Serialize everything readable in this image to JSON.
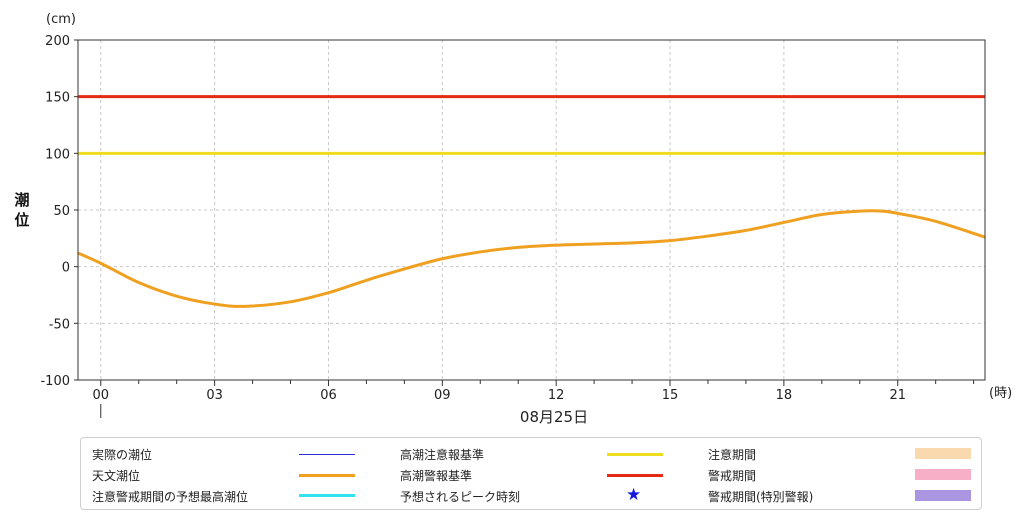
{
  "chart_data": {
    "type": "line",
    "unit_label": "(cm)",
    "ylabel": "潮位",
    "x_unit_label": "(時)",
    "date_label": "08月25日",
    "ylim": [
      -100,
      200
    ],
    "yticks": [
      -100,
      -50,
      0,
      50,
      100,
      150,
      200
    ],
    "xlim_hours": [
      -0.6,
      23.3
    ],
    "xtick_labels": [
      "00",
      "03",
      "06",
      "09",
      "12",
      "15",
      "18",
      "21"
    ],
    "grid": true,
    "series": [
      {
        "name": "天文潮位",
        "color": "#f0a020",
        "x": [
          -0.6,
          0,
          1,
          2,
          3,
          3.8,
          5,
          6,
          7,
          8,
          9,
          10,
          11,
          12,
          13,
          14,
          15,
          16,
          17,
          18,
          19,
          20,
          20.6,
          21,
          22,
          23.3
        ],
        "y": [
          12,
          3,
          -14,
          -26,
          -33,
          -35,
          -31,
          -23,
          -12,
          -2,
          7,
          13,
          17,
          19,
          20,
          21,
          23,
          27,
          32,
          39,
          46,
          49,
          49,
          47,
          40,
          26
        ]
      },
      {
        "name": "高潮注意報基準",
        "color": "#eedd1c",
        "x": [
          -0.6,
          23.3
        ],
        "y": [
          100,
          100
        ]
      },
      {
        "name": "高潮警報基準",
        "color": "#e42a12",
        "x": [
          -0.6,
          23.3
        ],
        "y": [
          150,
          150
        ]
      }
    ]
  },
  "legend": {
    "col1": [
      {
        "label": "実際の潮位",
        "type": "line",
        "color": "#2b2bd6"
      },
      {
        "label": "天文潮位",
        "type": "line",
        "color": "#f0a020"
      },
      {
        "label": "注意警戒期間の予想最高潮位",
        "type": "line",
        "color": "#33e4ee"
      }
    ],
    "col2": [
      {
        "label": "高潮注意報基準",
        "type": "line",
        "color": "#eedd1c"
      },
      {
        "label": "高潮警報基準",
        "type": "line",
        "color": "#e42a12"
      },
      {
        "label": "予想されるピーク時刻",
        "type": "star",
        "color": "#1418d8",
        "symbol": "★"
      }
    ],
    "col3": [
      {
        "label": "注意期間",
        "type": "box",
        "color": "#f9d9ad"
      },
      {
        "label": "警戒期間",
        "type": "box",
        "color": "#f6afc6"
      },
      {
        "label": "警戒期間(特別警報)",
        "type": "box",
        "color": "#a995e0"
      }
    ]
  }
}
